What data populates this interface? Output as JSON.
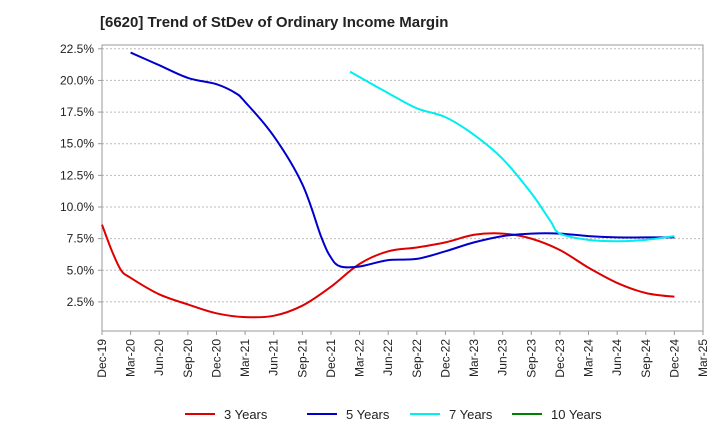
{
  "chart_data": {
    "type": "line",
    "title": "[6620]  Trend of StDev of Ordinary Income Margin",
    "xlabel": "",
    "ylabel": "",
    "x_ticks": [
      "Dec-19",
      "Mar-20",
      "Jun-20",
      "Sep-20",
      "Dec-20",
      "Mar-21",
      "Jun-21",
      "Sep-21",
      "Dec-21",
      "Mar-22",
      "Jun-22",
      "Sep-22",
      "Dec-22",
      "Mar-23",
      "Jun-23",
      "Sep-23",
      "Dec-23",
      "Mar-24",
      "Jun-24",
      "Sep-24",
      "Dec-24",
      "Mar-25"
    ],
    "y_ticks": [
      "2.5%",
      "5.0%",
      "7.5%",
      "10.0%",
      "12.5%",
      "15.0%",
      "17.5%",
      "20.0%",
      "22.5%"
    ],
    "ylim": [
      0.2,
      22.8
    ],
    "grid": "horizontal dashed",
    "legend_position": "bottom",
    "series": [
      {
        "name": "3 Years",
        "color": "#dd0000",
        "x": [
          "Dec-19",
          "Jan-20",
          "Feb-20",
          "Mar-20",
          "Jun-20",
          "Sep-20",
          "Dec-20",
          "Mar-21",
          "Jun-21",
          "Sep-21",
          "Dec-21",
          "Mar-22",
          "Jun-22",
          "Sep-22",
          "Dec-22",
          "Mar-23",
          "Jun-23",
          "Sep-23",
          "Dec-23",
          "Mar-24",
          "Jun-24",
          "Sep-24",
          "Dec-24"
        ],
        "values": [
          8.6,
          6.6,
          5.0,
          4.4,
          3.1,
          2.3,
          1.6,
          1.3,
          1.4,
          2.2,
          3.7,
          5.5,
          6.5,
          6.8,
          7.2,
          7.8,
          7.9,
          7.5,
          6.6,
          5.2,
          4.0,
          3.2,
          2.9
        ]
      },
      {
        "name": "5 Years",
        "color": "#0000cc",
        "x": [
          "Mar-20",
          "Jun-20",
          "Sep-20",
          "Dec-20",
          "Feb-21",
          "Mar-21",
          "Jun-21",
          "Sep-21",
          "Nov-21",
          "Dec-21",
          "Jan-22",
          "Mar-22",
          "Jun-22",
          "Sep-22",
          "Dec-22",
          "Mar-23",
          "Jun-23",
          "Sep-23",
          "Dec-23",
          "Mar-24",
          "Jun-24",
          "Sep-24",
          "Dec-24"
        ],
        "values": [
          22.2,
          21.2,
          20.2,
          19.7,
          19.0,
          18.3,
          15.6,
          11.8,
          7.6,
          6.0,
          5.3,
          5.3,
          5.8,
          5.9,
          6.5,
          7.2,
          7.7,
          7.9,
          7.9,
          7.7,
          7.6,
          7.6,
          7.6
        ]
      },
      {
        "name": "7 Years",
        "color": "#00eeee",
        "x": [
          "Feb-22",
          "Jun-22",
          "Sep-22",
          "Dec-22",
          "Mar-23",
          "Jun-23",
          "Sep-23",
          "Nov-23",
          "Dec-23",
          "Mar-24",
          "Jun-24",
          "Sep-24",
          "Dec-24"
        ],
        "values": [
          20.7,
          19.0,
          17.8,
          17.1,
          15.7,
          13.8,
          11.1,
          8.9,
          7.9,
          7.4,
          7.3,
          7.4,
          7.7
        ]
      },
      {
        "name": "10 Years",
        "color": "#008000",
        "x": [],
        "values": []
      }
    ]
  }
}
